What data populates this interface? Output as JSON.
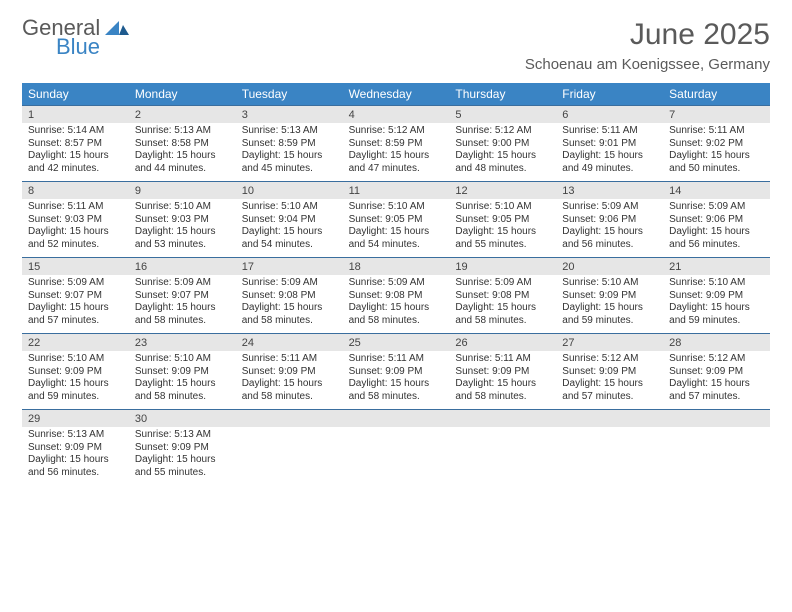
{
  "brand": {
    "part1": "General",
    "part2": "Blue"
  },
  "title": "June 2025",
  "location": "Schoenau am Koenigssee, Germany",
  "colors": {
    "header_bg": "#3a84c4",
    "header_text": "#ffffff",
    "daynum_bg": "#e6e6e6",
    "rule": "#3a6e9e",
    "title_text": "#5a5a5a"
  },
  "daysOfWeek": [
    "Sunday",
    "Monday",
    "Tuesday",
    "Wednesday",
    "Thursday",
    "Friday",
    "Saturday"
  ],
  "weeks": [
    [
      {
        "n": "1",
        "sr": "5:14 AM",
        "ss": "8:57 PM",
        "dl": "15 hours and 42 minutes."
      },
      {
        "n": "2",
        "sr": "5:13 AM",
        "ss": "8:58 PM",
        "dl": "15 hours and 44 minutes."
      },
      {
        "n": "3",
        "sr": "5:13 AM",
        "ss": "8:59 PM",
        "dl": "15 hours and 45 minutes."
      },
      {
        "n": "4",
        "sr": "5:12 AM",
        "ss": "8:59 PM",
        "dl": "15 hours and 47 minutes."
      },
      {
        "n": "5",
        "sr": "5:12 AM",
        "ss": "9:00 PM",
        "dl": "15 hours and 48 minutes."
      },
      {
        "n": "6",
        "sr": "5:11 AM",
        "ss": "9:01 PM",
        "dl": "15 hours and 49 minutes."
      },
      {
        "n": "7",
        "sr": "5:11 AM",
        "ss": "9:02 PM",
        "dl": "15 hours and 50 minutes."
      }
    ],
    [
      {
        "n": "8",
        "sr": "5:11 AM",
        "ss": "9:03 PM",
        "dl": "15 hours and 52 minutes."
      },
      {
        "n": "9",
        "sr": "5:10 AM",
        "ss": "9:03 PM",
        "dl": "15 hours and 53 minutes."
      },
      {
        "n": "10",
        "sr": "5:10 AM",
        "ss": "9:04 PM",
        "dl": "15 hours and 54 minutes."
      },
      {
        "n": "11",
        "sr": "5:10 AM",
        "ss": "9:05 PM",
        "dl": "15 hours and 54 minutes."
      },
      {
        "n": "12",
        "sr": "5:10 AM",
        "ss": "9:05 PM",
        "dl": "15 hours and 55 minutes."
      },
      {
        "n": "13",
        "sr": "5:09 AM",
        "ss": "9:06 PM",
        "dl": "15 hours and 56 minutes."
      },
      {
        "n": "14",
        "sr": "5:09 AM",
        "ss": "9:06 PM",
        "dl": "15 hours and 56 minutes."
      }
    ],
    [
      {
        "n": "15",
        "sr": "5:09 AM",
        "ss": "9:07 PM",
        "dl": "15 hours and 57 minutes."
      },
      {
        "n": "16",
        "sr": "5:09 AM",
        "ss": "9:07 PM",
        "dl": "15 hours and 58 minutes."
      },
      {
        "n": "17",
        "sr": "5:09 AM",
        "ss": "9:08 PM",
        "dl": "15 hours and 58 minutes."
      },
      {
        "n": "18",
        "sr": "5:09 AM",
        "ss": "9:08 PM",
        "dl": "15 hours and 58 minutes."
      },
      {
        "n": "19",
        "sr": "5:09 AM",
        "ss": "9:08 PM",
        "dl": "15 hours and 58 minutes."
      },
      {
        "n": "20",
        "sr": "5:10 AM",
        "ss": "9:09 PM",
        "dl": "15 hours and 59 minutes."
      },
      {
        "n": "21",
        "sr": "5:10 AM",
        "ss": "9:09 PM",
        "dl": "15 hours and 59 minutes."
      }
    ],
    [
      {
        "n": "22",
        "sr": "5:10 AM",
        "ss": "9:09 PM",
        "dl": "15 hours and 59 minutes."
      },
      {
        "n": "23",
        "sr": "5:10 AM",
        "ss": "9:09 PM",
        "dl": "15 hours and 58 minutes."
      },
      {
        "n": "24",
        "sr": "5:11 AM",
        "ss": "9:09 PM",
        "dl": "15 hours and 58 minutes."
      },
      {
        "n": "25",
        "sr": "5:11 AM",
        "ss": "9:09 PM",
        "dl": "15 hours and 58 minutes."
      },
      {
        "n": "26",
        "sr": "5:11 AM",
        "ss": "9:09 PM",
        "dl": "15 hours and 58 minutes."
      },
      {
        "n": "27",
        "sr": "5:12 AM",
        "ss": "9:09 PM",
        "dl": "15 hours and 57 minutes."
      },
      {
        "n": "28",
        "sr": "5:12 AM",
        "ss": "9:09 PM",
        "dl": "15 hours and 57 minutes."
      }
    ],
    [
      {
        "n": "29",
        "sr": "5:13 AM",
        "ss": "9:09 PM",
        "dl": "15 hours and 56 minutes."
      },
      {
        "n": "30",
        "sr": "5:13 AM",
        "ss": "9:09 PM",
        "dl": "15 hours and 55 minutes."
      },
      {
        "n": "",
        "sr": "",
        "ss": "",
        "dl": ""
      },
      {
        "n": "",
        "sr": "",
        "ss": "",
        "dl": ""
      },
      {
        "n": "",
        "sr": "",
        "ss": "",
        "dl": ""
      },
      {
        "n": "",
        "sr": "",
        "ss": "",
        "dl": ""
      },
      {
        "n": "",
        "sr": "",
        "ss": "",
        "dl": ""
      }
    ]
  ],
  "labels": {
    "sunrise": "Sunrise:",
    "sunset": "Sunset:",
    "daylight": "Daylight:"
  }
}
